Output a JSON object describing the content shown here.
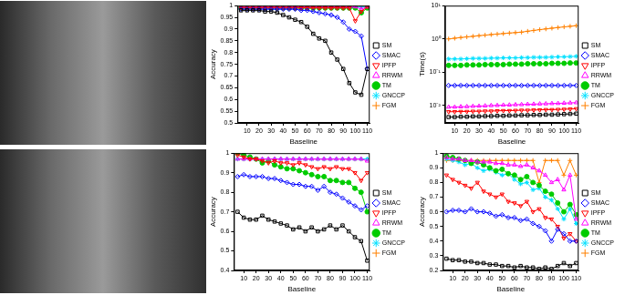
{
  "chart_data": [
    {
      "type": "line",
      "x": [
        5,
        10,
        15,
        20,
        25,
        30,
        35,
        40,
        45,
        50,
        55,
        60,
        65,
        70,
        75,
        80,
        85,
        90,
        95,
        100,
        105,
        110
      ],
      "xlim": [
        2,
        112
      ],
      "xticks": [
        10,
        20,
        30,
        40,
        50,
        60,
        70,
        80,
        90,
        100,
        110
      ],
      "ylim": [
        0.5,
        1
      ],
      "yticks": [
        0.5,
        0.55,
        0.6,
        0.65,
        0.7,
        0.75,
        0.8,
        0.85,
        0.9,
        0.95,
        1
      ],
      "x_label": "Baseline",
      "y_label": "Accuracy",
      "grid": false,
      "legend": "right",
      "series": [
        {
          "name": "SM",
          "color": "#000000",
          "marker": "square",
          "values": [
            0.98,
            0.98,
            0.98,
            0.98,
            0.975,
            0.975,
            0.97,
            0.96,
            0.95,
            0.94,
            0.93,
            0.91,
            0.88,
            0.86,
            0.85,
            0.8,
            0.77,
            0.73,
            0.67,
            0.63,
            0.62,
            0.73
          ]
        },
        {
          "name": "SMAC",
          "color": "#0000ff",
          "marker": "diamond",
          "values": [
            0.985,
            0.985,
            0.985,
            0.985,
            0.985,
            0.985,
            0.985,
            0.985,
            0.985,
            0.985,
            0.98,
            0.98,
            0.975,
            0.97,
            0.965,
            0.96,
            0.95,
            0.93,
            0.9,
            0.89,
            0.87,
            0.73
          ]
        },
        {
          "name": "IPFP",
          "color": "#ff0000",
          "marker": "triangle-down",
          "values": [
            0.99,
            0.99,
            0.99,
            0.99,
            0.99,
            0.99,
            0.99,
            0.99,
            0.99,
            0.99,
            0.99,
            0.99,
            0.99,
            0.99,
            0.99,
            0.99,
            0.99,
            0.99,
            0.99,
            0.935,
            0.975,
            0.995
          ]
        },
        {
          "name": "RRWM",
          "color": "#ff00ff",
          "marker": "triangle-up",
          "values": [
            0.995,
            0.995,
            0.995,
            0.995,
            0.995,
            0.995,
            0.995,
            0.995,
            0.995,
            0.995,
            0.995,
            0.995,
            0.995,
            0.995,
            0.995,
            0.995,
            0.995,
            0.995,
            0.995,
            0.995,
            0.985,
            0.995
          ]
        },
        {
          "name": "TM",
          "color": "#00cc00",
          "marker": "circle",
          "values": [
            0.99,
            0.99,
            0.99,
            0.99,
            0.99,
            0.99,
            0.99,
            0.99,
            0.99,
            0.99,
            0.99,
            0.99,
            0.99,
            0.99,
            0.99,
            0.99,
            0.99,
            0.99,
            0.99,
            0.99,
            0.97,
            0.99
          ]
        },
        {
          "name": "GNCCP",
          "color": "#00e0ff",
          "marker": "asterisk",
          "values": [
            0.995,
            0.995,
            0.995,
            0.995,
            0.995,
            0.995,
            0.995,
            0.995,
            0.995,
            0.995,
            0.995,
            0.995,
            0.995,
            0.995,
            0.995,
            0.995,
            0.995,
            0.995,
            0.995,
            0.995,
            0.995,
            0.995
          ]
        },
        {
          "name": "FGM",
          "color": "#ff8000",
          "marker": "plus",
          "values": [
            1,
            1,
            1,
            1,
            1,
            1,
            1,
            1,
            1,
            1,
            1,
            1,
            1,
            1,
            1,
            1,
            1,
            1,
            1,
            1,
            1,
            1
          ]
        }
      ]
    },
    {
      "type": "line",
      "log": "y",
      "x": [
        5,
        10,
        15,
        20,
        25,
        30,
        35,
        40,
        45,
        50,
        55,
        60,
        65,
        70,
        75,
        80,
        85,
        90,
        95,
        100,
        105,
        110
      ],
      "xlim": [
        2,
        112
      ],
      "xticks": [
        10,
        20,
        30,
        40,
        50,
        60,
        70,
        80,
        90,
        100,
        110
      ],
      "ylim": [
        0.003,
        10
      ],
      "yticks": [
        {
          "value": 0.01,
          "label": "10⁻²"
        },
        {
          "value": 0.1,
          "label": "10⁻¹"
        },
        {
          "value": 1,
          "label": "10⁰"
        },
        {
          "value": 10,
          "label": "10¹"
        }
      ],
      "x_label": "Baseline",
      "y_label": "Time(s)",
      "grid": false,
      "legend": "right",
      "series": [
        {
          "name": "SM",
          "color": "#000000",
          "marker": "square",
          "values": [
            0.0045,
            0.0045,
            0.0046,
            0.0046,
            0.0047,
            0.0047,
            0.0048,
            0.0048,
            0.0049,
            0.0049,
            0.005,
            0.005,
            0.0051,
            0.0051,
            0.0052,
            0.0052,
            0.0053,
            0.0053,
            0.0054,
            0.0055,
            0.0056,
            0.0057
          ]
        },
        {
          "name": "SMAC",
          "color": "#0000ff",
          "marker": "diamond",
          "values": [
            0.04,
            0.04,
            0.04,
            0.04,
            0.04,
            0.04,
            0.04,
            0.04,
            0.04,
            0.04,
            0.04,
            0.04,
            0.04,
            0.04,
            0.04,
            0.04,
            0.04,
            0.04,
            0.04,
            0.04,
            0.04,
            0.04
          ]
        },
        {
          "name": "IPFP",
          "color": "#ff0000",
          "marker": "triangle-down",
          "values": [
            0.0065,
            0.0065,
            0.0066,
            0.0066,
            0.0067,
            0.0067,
            0.0068,
            0.0068,
            0.0069,
            0.007,
            0.007,
            0.0071,
            0.0072,
            0.0072,
            0.0073,
            0.0074,
            0.0075,
            0.0075,
            0.0076,
            0.0077,
            0.0078,
            0.008
          ]
        },
        {
          "name": "RRWM",
          "color": "#ff00ff",
          "marker": "triangle-up",
          "values": [
            0.009,
            0.009,
            0.0092,
            0.0093,
            0.0095,
            0.0096,
            0.0098,
            0.01,
            0.0101,
            0.0103,
            0.0104,
            0.0106,
            0.0107,
            0.0109,
            0.011,
            0.0112,
            0.0113,
            0.0115,
            0.0116,
            0.0118,
            0.012,
            0.0122
          ]
        },
        {
          "name": "TM",
          "color": "#00cc00",
          "marker": "circle",
          "values": [
            0.16,
            0.16,
            0.16,
            0.165,
            0.165,
            0.165,
            0.17,
            0.17,
            0.17,
            0.17,
            0.175,
            0.175,
            0.175,
            0.18,
            0.18,
            0.18,
            0.18,
            0.185,
            0.185,
            0.185,
            0.19,
            0.19
          ]
        },
        {
          "name": "GNCCP",
          "color": "#00e0ff",
          "marker": "asterisk",
          "values": [
            0.25,
            0.25,
            0.25,
            0.255,
            0.26,
            0.26,
            0.26,
            0.265,
            0.265,
            0.27,
            0.27,
            0.27,
            0.275,
            0.275,
            0.28,
            0.28,
            0.28,
            0.285,
            0.29,
            0.29,
            0.295,
            0.3
          ]
        },
        {
          "name": "FGM",
          "color": "#ff8000",
          "marker": "plus",
          "values": [
            1,
            1.05,
            1.1,
            1.15,
            1.2,
            1.25,
            1.3,
            1.35,
            1.4,
            1.45,
            1.5,
            1.55,
            1.6,
            1.7,
            1.8,
            1.9,
            2,
            2.1,
            2.2,
            2.3,
            2.4,
            2.5
          ]
        }
      ]
    },
    {
      "type": "line",
      "x": [
        5,
        10,
        15,
        20,
        25,
        30,
        35,
        40,
        45,
        50,
        55,
        60,
        65,
        70,
        75,
        80,
        85,
        90,
        95,
        100,
        105,
        110
      ],
      "xlim": [
        2,
        112
      ],
      "xticks": [
        10,
        20,
        30,
        40,
        50,
        60,
        70,
        80,
        90,
        100,
        110
      ],
      "ylim": [
        0.4,
        1
      ],
      "yticks": [
        0.4,
        0.5,
        0.6,
        0.7,
        0.8,
        0.9,
        1
      ],
      "x_label": "Baseline",
      "y_label": "Accuracy",
      "grid": false,
      "legend": "right",
      "series": [
        {
          "name": "SM",
          "color": "#000000",
          "marker": "square",
          "values": [
            0.7,
            0.67,
            0.66,
            0.66,
            0.68,
            0.66,
            0.65,
            0.64,
            0.63,
            0.61,
            0.62,
            0.6,
            0.62,
            0.6,
            0.61,
            0.63,
            0.61,
            0.63,
            0.6,
            0.57,
            0.55,
            0.45
          ]
        },
        {
          "name": "SMAC",
          "color": "#0000ff",
          "marker": "diamond",
          "values": [
            0.88,
            0.89,
            0.88,
            0.88,
            0.88,
            0.87,
            0.87,
            0.86,
            0.85,
            0.84,
            0.84,
            0.83,
            0.83,
            0.81,
            0.83,
            0.8,
            0.79,
            0.77,
            0.75,
            0.73,
            0.71,
            0.73
          ]
        },
        {
          "name": "IPFP",
          "color": "#ff0000",
          "marker": "triangle-down",
          "values": [
            0.99,
            0.98,
            0.97,
            0.97,
            0.96,
            0.95,
            0.96,
            0.95,
            0.95,
            0.94,
            0.95,
            0.94,
            0.93,
            0.92,
            0.93,
            0.92,
            0.93,
            0.92,
            0.92,
            0.9,
            0.86,
            0.9
          ]
        },
        {
          "name": "RRWM",
          "color": "#ff00ff",
          "marker": "triangle-up",
          "values": [
            0.97,
            0.97,
            0.97,
            0.97,
            0.97,
            0.97,
            0.97,
            0.97,
            0.97,
            0.97,
            0.97,
            0.97,
            0.97,
            0.97,
            0.97,
            0.97,
            0.97,
            0.97,
            0.97,
            0.97,
            0.97,
            0.96
          ]
        },
        {
          "name": "TM",
          "color": "#00cc00",
          "marker": "circle",
          "values": [
            1,
            0.99,
            0.98,
            0.97,
            0.95,
            0.96,
            0.94,
            0.93,
            0.92,
            0.92,
            0.91,
            0.9,
            0.89,
            0.88,
            0.88,
            0.86,
            0.86,
            0.85,
            0.85,
            0.82,
            0.8,
            0.7
          ]
        },
        {
          "name": "GNCCP",
          "color": "#00e0ff",
          "marker": "asterisk",
          "values": [
            0.97,
            0.97,
            0.97,
            0.97,
            0.97,
            0.97,
            0.97,
            0.97,
            0.97,
            0.97,
            0.97,
            0.97,
            0.97,
            0.97,
            0.97,
            0.97,
            0.97,
            0.97,
            0.97,
            0.97,
            0.97,
            0.97
          ]
        },
        {
          "name": "FGM",
          "color": "#ff8000",
          "marker": "plus",
          "values": [
            0.97,
            0.97,
            0.97,
            0.97,
            0.97,
            0.97,
            0.97,
            0.97,
            0.97,
            0.97,
            0.97,
            0.97,
            0.97,
            0.97,
            0.97,
            0.97,
            0.97,
            0.97,
            0.97,
            0.97,
            0.97,
            0.97
          ]
        }
      ]
    },
    {
      "type": "line",
      "x": [
        5,
        10,
        15,
        20,
        25,
        30,
        35,
        40,
        45,
        50,
        55,
        60,
        65,
        70,
        75,
        80,
        85,
        90,
        95,
        100,
        105,
        110
      ],
      "xlim": [
        2,
        112
      ],
      "xticks": [
        10,
        20,
        30,
        40,
        50,
        60,
        70,
        80,
        90,
        100,
        110
      ],
      "ylim": [
        0.2,
        1
      ],
      "yticks": [
        0.2,
        0.3,
        0.4,
        0.5,
        0.6,
        0.7,
        0.8,
        0.9,
        1
      ],
      "x_label": "Baseline",
      "y_label": "Accuracy",
      "grid": false,
      "legend": "right",
      "series": [
        {
          "name": "SM",
          "color": "#000000",
          "marker": "square",
          "values": [
            0.28,
            0.27,
            0.27,
            0.26,
            0.26,
            0.25,
            0.25,
            0.24,
            0.24,
            0.23,
            0.23,
            0.22,
            0.23,
            0.22,
            0.22,
            0.21,
            0.22,
            0.21,
            0.23,
            0.25,
            0.23,
            0.25
          ]
        },
        {
          "name": "SMAC",
          "color": "#0000ff",
          "marker": "diamond",
          "values": [
            0.6,
            0.61,
            0.61,
            0.6,
            0.62,
            0.6,
            0.6,
            0.59,
            0.57,
            0.58,
            0.56,
            0.56,
            0.54,
            0.55,
            0.52,
            0.5,
            0.47,
            0.4,
            0.48,
            0.45,
            0.4,
            0.4
          ]
        },
        {
          "name": "IPFP",
          "color": "#ff0000",
          "marker": "triangle-down",
          "values": [
            0.85,
            0.82,
            0.8,
            0.78,
            0.76,
            0.8,
            0.74,
            0.72,
            0.7,
            0.72,
            0.67,
            0.66,
            0.64,
            0.67,
            0.6,
            0.62,
            0.56,
            0.55,
            0.5,
            0.42,
            0.45,
            0.4
          ]
        },
        {
          "name": "RRWM",
          "color": "#ff00ff",
          "marker": "triangle-up",
          "values": [
            0.97,
            0.96,
            0.96,
            0.95,
            0.95,
            0.94,
            0.94,
            0.94,
            0.93,
            0.93,
            0.92,
            0.92,
            0.91,
            0.92,
            0.9,
            0.88,
            0.85,
            0.8,
            0.82,
            0.75,
            0.85,
            0.55
          ]
        },
        {
          "name": "TM",
          "color": "#00cc00",
          "marker": "circle",
          "values": [
            0.98,
            0.97,
            0.96,
            0.95,
            0.93,
            0.94,
            0.92,
            0.9,
            0.88,
            0.89,
            0.86,
            0.85,
            0.82,
            0.84,
            0.8,
            0.78,
            0.74,
            0.72,
            0.66,
            0.6,
            0.65,
            0.58
          ]
        },
        {
          "name": "GNCCP",
          "color": "#00e0ff",
          "marker": "asterisk",
          "values": [
            0.96,
            0.95,
            0.94,
            0.92,
            0.93,
            0.9,
            0.88,
            0.89,
            0.87,
            0.85,
            0.86,
            0.82,
            0.79,
            0.8,
            0.75,
            0.76,
            0.7,
            0.68,
            0.62,
            0.55,
            0.62,
            0.52
          ]
        },
        {
          "name": "FGM",
          "color": "#ff8000",
          "marker": "plus",
          "values": [
            0.95,
            0.95,
            0.95,
            0.95,
            0.95,
            0.95,
            0.95,
            0.95,
            0.95,
            0.95,
            0.95,
            0.95,
            0.95,
            0.95,
            0.95,
            0.8,
            0.95,
            0.95,
            0.95,
            0.85,
            0.95,
            0.85
          ]
        }
      ]
    }
  ]
}
